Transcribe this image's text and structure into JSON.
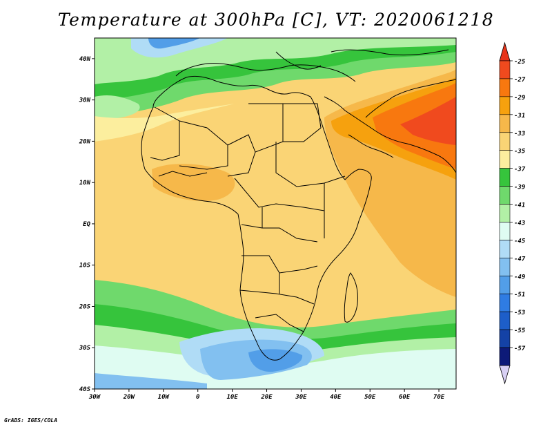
{
  "title": "Temperature at 300hPa [C], VT: 2020061218",
  "credit": "GrADS: IGES/COLA",
  "map": {
    "variable": "Temperature at 300hPa",
    "units": "C",
    "valid_time": "2020061218",
    "lon_range": [
      -30,
      75
    ],
    "lat_range": [
      -40,
      45
    ],
    "lat_ticks": [
      {
        "value": 40,
        "label": "40N"
      },
      {
        "value": 30,
        "label": "30N"
      },
      {
        "value": 20,
        "label": "20N"
      },
      {
        "value": 10,
        "label": "10N"
      },
      {
        "value": 0,
        "label": "EQ"
      },
      {
        "value": -10,
        "label": "10S"
      },
      {
        "value": -20,
        "label": "20S"
      },
      {
        "value": -30,
        "label": "30S"
      },
      {
        "value": -40,
        "label": "40S"
      }
    ],
    "lon_ticks": [
      {
        "value": -30,
        "label": "30W"
      },
      {
        "value": -20,
        "label": "20W"
      },
      {
        "value": -10,
        "label": "10W"
      },
      {
        "value": 0,
        "label": "0"
      },
      {
        "value": 10,
        "label": "10E"
      },
      {
        "value": 20,
        "label": "20E"
      },
      {
        "value": 30,
        "label": "30E"
      },
      {
        "value": 40,
        "label": "40E"
      },
      {
        "value": 50,
        "label": "50E"
      },
      {
        "value": 60,
        "label": "60E"
      },
      {
        "value": 70,
        "label": "70E"
      }
    ]
  },
  "colorbar": {
    "levels": [
      {
        "label": "-25",
        "color": "#f04a1e"
      },
      {
        "label": "-27",
        "color": "#f8780f"
      },
      {
        "label": "-29",
        "color": "#f6a10e"
      },
      {
        "label": "-31",
        "color": "#f6b84a"
      },
      {
        "label": "-33",
        "color": "#fad475"
      },
      {
        "label": "-35",
        "color": "#fcee9e"
      },
      {
        "label": "-37",
        "color": "#36c43c"
      },
      {
        "label": "-39",
        "color": "#6fd96c"
      },
      {
        "label": "-41",
        "color": "#b2f0a6"
      },
      {
        "label": "-43",
        "color": "#dffcf2"
      },
      {
        "label": "-45",
        "color": "#b0dcf6"
      },
      {
        "label": "-47",
        "color": "#82c0f0"
      },
      {
        "label": "-49",
        "color": "#529ee8"
      },
      {
        "label": "-51",
        "color": "#2f7ce3"
      },
      {
        "label": "-53",
        "color": "#1d5ec9"
      },
      {
        "label": "-55",
        "color": "#1442a6"
      },
      {
        "label": "-57",
        "color": "#0d1a78"
      }
    ],
    "top_arrow_color": "#e8341a",
    "bottom_arrow_color": "#d8d0f4"
  }
}
